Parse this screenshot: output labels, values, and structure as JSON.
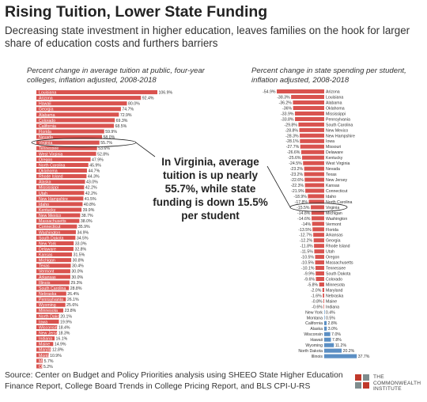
{
  "title": "Rising Tuition, Lower State Funding",
  "subtitle": "Decreasing state investment in higher education, leaves families on the hook for larger share of education costs and furthers barriers",
  "callout": "In Virginia, average tuition is up nearly 55.7%, while state funding is down 15.5% per student",
  "source": "Source: Center on Budget and Policy Priorities analysis using SHEEO State Higher Education Finance Report, College Board Trends in College Pricing Report, and BLS CPI-U-RS",
  "logo": {
    "line1": "THE",
    "line2": "COMMONWEALTH",
    "line3": "INSTITUTE"
  },
  "colors": {
    "tuition_bar": "#d9534f",
    "spending_negative": "#d9534f",
    "spending_positive": "#5b8fc4",
    "logo_red": "#c0392b"
  },
  "chart_data": [
    {
      "type": "bar",
      "orientation": "horizontal",
      "title": "Percent change in average tuition at public, four-year colleges, inflation adjusted, 2008-2018",
      "highlight": "Virginia",
      "categories": [
        "Louisiana",
        "Arizona",
        "Hawaii",
        "Georgia",
        "Alabama",
        "Colorado",
        "California",
        "Florida",
        "Nevada",
        "Virginia",
        "Tennessee",
        "West Virginia",
        "Oregon",
        "North Carolina",
        "Oklahoma",
        "Rhode Island",
        "Alaska",
        "Mississippi",
        "Utah",
        "New Hampshire",
        "Idaho",
        "Kentucky",
        "New Mexico",
        "Massachusetts",
        "Connecticut",
        "Washington",
        "South Dakota",
        "New York",
        "Delaware",
        "Kansas",
        "Michigan",
        "Texas",
        "Vermont",
        "Arkansas",
        "Illinois",
        "South Carolina",
        "Nebraska",
        "Pennsylvania",
        "Wyoming",
        "Minnesota",
        "North Dakota",
        "Iowa",
        "Wisconsin",
        "New Jersey",
        "Indiana",
        "Maine",
        "Maryland",
        "Montana",
        "Missouri",
        "Ohio"
      ],
      "values": [
        106.9,
        92.4,
        80.0,
        74.7,
        72.9,
        69.3,
        68.5,
        59.9,
        58.0,
        55.7,
        53.6,
        52.8,
        47.9,
        45.9,
        44.7,
        44.3,
        43.0,
        42.2,
        42.2,
        41.5,
        40.8,
        39.9,
        38.7,
        38.0,
        35.9,
        34.9,
        34.5,
        33.0,
        32.8,
        31.5,
        30.8,
        30.4,
        30.0,
        30.0,
        29.3,
        28.8,
        26.4,
        26.1,
        25.6,
        23.8,
        20.1,
        19.9,
        18.4,
        18.3,
        16.1,
        14.9,
        12.8,
        10.9,
        5.7,
        5.2
      ],
      "value_labels": [
        "106.9%",
        "92.4%",
        "80.0%",
        "74.7%",
        "72.9%",
        "69.3%",
        "68.5%",
        "59.9%",
        "58.0%",
        "55.7%",
        "53.6%",
        "52.8%",
        "47.9%",
        "45.9%",
        "44.7%",
        "44.3%",
        "43.0%",
        "42.2%",
        "42.2%",
        "41.5%",
        "40.8%",
        "39.9%",
        "38.7%",
        "38.0%",
        "35.9%",
        "34.9%",
        "34.5%",
        "33.0%",
        "32.8%",
        "31.5%",
        "30.8%",
        "30.4%",
        "30.0%",
        "30.0%",
        "29.3%",
        "28.8%",
        "26.4%",
        "26.1%",
        "25.6%",
        "23.8%",
        "20.1%",
        "19.9%",
        "18.4%",
        "18.3%",
        "16.1%",
        "14.9%",
        "12.8%",
        "10.9%",
        "5.7%",
        "5.2%"
      ]
    },
    {
      "type": "bar",
      "orientation": "horizontal",
      "title": "Percent change in state spending per student, inflation adjusted, 2008-2018",
      "highlight": "Virginia",
      "categories": [
        "Arizona",
        "Louisiana",
        "Alabama",
        "Oklahoma",
        "Mississippi",
        "Pennsylvania",
        "South Carolina",
        "New Mexico",
        "New Hampshire",
        "Iowa",
        "Missouri",
        "Delaware",
        "Kentucky",
        "West Virginia",
        "Nevada",
        "Texas",
        "New Jersey",
        "Kansas",
        "Connecticut",
        "Idaho",
        "North Carolina",
        "Virginia",
        "Michigan",
        "Washington",
        "Vermont",
        "Florida",
        "Arkansas",
        "Georgia",
        "Rhode Island",
        "Utah",
        "Oregon",
        "Massachusetts",
        "Tennessee",
        "South Dakota",
        "Colorado",
        "Minnesota",
        "Maryland",
        "Nebraska",
        "Maine",
        "Indiana",
        "New York",
        "Montana",
        "California",
        "Alaska",
        "Wisconsin",
        "Hawaii",
        "Wyoming",
        "North Dakota",
        "Illinois"
      ],
      "values": [
        -54.9,
        -38.3,
        -36.2,
        -36.0,
        -33.9,
        -33.8,
        -29.8,
        -28.8,
        -28.3,
        -28.1,
        -27.7,
        -26.6,
        -25.6,
        -24.5,
        -23.2,
        -23.2,
        -22.6,
        -22.3,
        -21.9,
        -18.9,
        -17.8,
        -15.5,
        -14.8,
        -14.6,
        -14.0,
        -13.5,
        -12.7,
        -12.2,
        -11.8,
        -11.5,
        -10.5,
        -10.5,
        -10.1,
        -9.9,
        -9.6,
        -5.8,
        -2.0,
        -1.6,
        -0.8,
        -0.6,
        0.4,
        0.5,
        2.8,
        3.0,
        7.0,
        7.8,
        11.2,
        20.2,
        37.7
      ],
      "value_labels": [
        "-54.9%",
        "-38.3%",
        "-36.2%",
        "-36%",
        "-33.9%",
        "-33.8%",
        "-29.8%",
        "-28.8%",
        "-28.3%",
        "-28.1%",
        "-27.7%",
        "-26.6%",
        "-25.6%",
        "-24.5%",
        "-23.2%",
        "-23.2%",
        "-22.6%",
        "-22.3%",
        "-21.9%",
        "-18.9%",
        "-17.8%",
        "-15.5%",
        "-14.8%",
        "-14.6%",
        "-14%",
        "-13.5%",
        "-12.7%",
        "-12.2%",
        "-11.8%",
        "-11.5%",
        "-10.5%",
        "-10.5%",
        "-10.1%",
        "-9.9%",
        "-9.6%",
        "-5.8%",
        "-2.0%",
        "-1.6%",
        "-0.8%",
        "-0.6%",
        "0.4%",
        "0.5%",
        "2.8%",
        "3.0%",
        "7.0%",
        "7.8%",
        "11.2%",
        "20.2%",
        "37.7%"
      ]
    }
  ]
}
